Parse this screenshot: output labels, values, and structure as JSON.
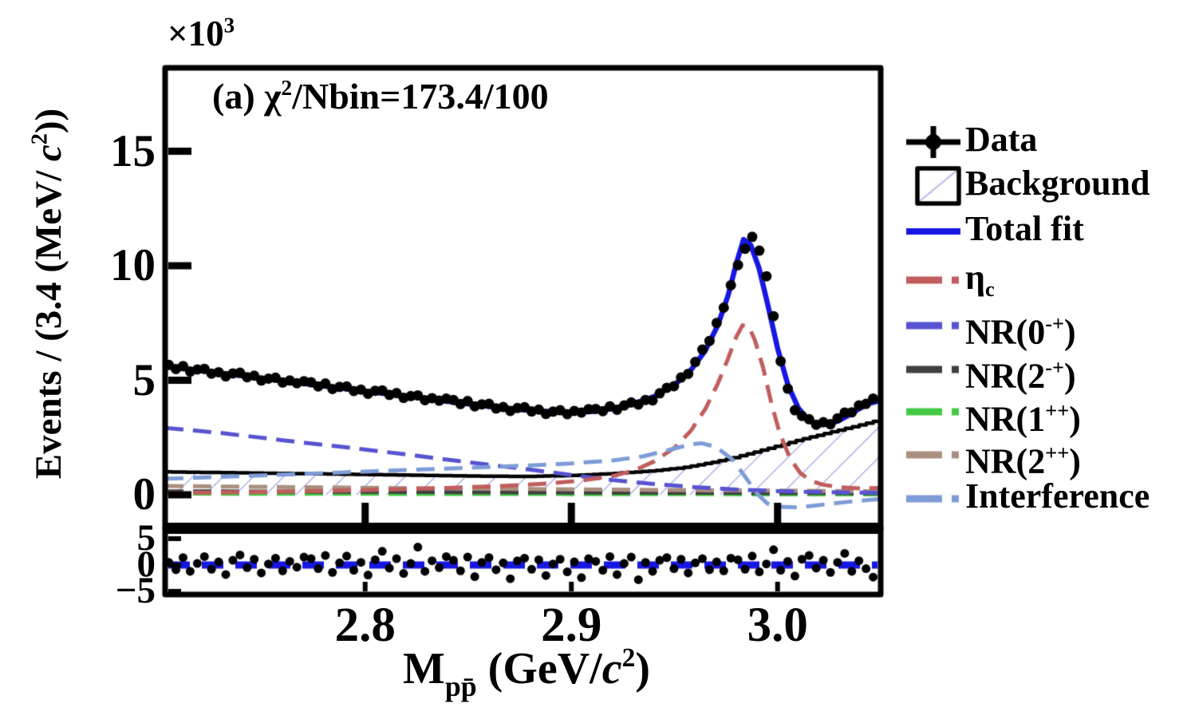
{
  "figure_title": "(a) χ2/Nbin=173.4/100",
  "texts": {
    "annotation_plain": "(a) χ2/Nbin=173.4/100",
    "annotation_rich": [
      {
        "t": "(a) χ"
      },
      {
        "t": "2",
        "sup": true
      },
      {
        "t": "/Nbin=173.4/100"
      }
    ],
    "multiplier_plain": "×103",
    "multiplier_rich": [
      {
        "t": "×10"
      },
      {
        "t": "3",
        "sup": true
      }
    ],
    "y_title_plain": "Events / (3.4 (MeV/ c2))",
    "y_title_rich": [
      {
        "t": "Events / (3.4 (MeV/ "
      },
      {
        "t": "c",
        "it": true
      },
      {
        "t": "2",
        "sup": true
      },
      {
        "t": "))"
      }
    ],
    "x_title_plain": "Mpp̄ (GeV/c2)",
    "x_title_rich": [
      {
        "t": "M"
      },
      {
        "t": "pp̄",
        "sub": true
      },
      {
        "t": " (GeV/"
      },
      {
        "t": "c",
        "it": true
      },
      {
        "t": "2",
        "sup": true
      },
      {
        "t": ")"
      }
    ]
  },
  "legend": {
    "items": [
      {
        "label": "Data",
        "label_rich": [
          {
            "t": "Data"
          }
        ],
        "marker": "cross-dot",
        "color": "#000000"
      },
      {
        "label": "Background",
        "label_rich": [
          {
            "t": "Background"
          }
        ],
        "marker": "hatched-box",
        "color": "#000000",
        "hatch_color": "#b8b8ec"
      },
      {
        "label": "Total fit",
        "label_rich": [
          {
            "t": "Total fit"
          }
        ],
        "marker": "solid-line",
        "color": "#1717e3"
      },
      {
        "label": "ηc",
        "label_rich": [
          {
            "t": "η"
          },
          {
            "t": "c",
            "sub": true
          }
        ],
        "marker": "dashed-line",
        "color": "#c15d5d"
      },
      {
        "label": "NR(0-+)",
        "label_rich": [
          {
            "t": "NR(0"
          },
          {
            "t": "-+",
            "sup": true
          },
          {
            "t": ")"
          }
        ],
        "marker": "dashed-line",
        "color": "#5753d0"
      },
      {
        "label": "NR(2-+)",
        "label_rich": [
          {
            "t": "NR(2"
          },
          {
            "t": "-+",
            "sup": true
          },
          {
            "t": ")"
          }
        ],
        "marker": "dashed-line",
        "color": "#404040"
      },
      {
        "label": "NR(1++)",
        "label_rich": [
          {
            "t": "NR(1"
          },
          {
            "t": "++",
            "sup": true
          },
          {
            "t": ")"
          }
        ],
        "marker": "dashed-line",
        "color": "#45c945"
      },
      {
        "label": "NR(2++)",
        "label_rich": [
          {
            "t": "NR(2"
          },
          {
            "t": "++",
            "sup": true
          },
          {
            "t": ")"
          }
        ],
        "marker": "dashed-line",
        "color": "#aa8f7f"
      },
      {
        "label": "Interference",
        "label_rich": [
          {
            "t": "Interference"
          }
        ],
        "marker": "dashed-line",
        "color": "#7d9cd7"
      }
    ]
  },
  "chart_data": {
    "type": "line",
    "title": "(a) χ2/Nbin=173.4/100",
    "xlabel": "Mpp̄ (GeV/c2)",
    "ylabel": "Events / (3.4 (MeV/ c2))",
    "y_unit_multiplier": "×103",
    "bin_width_label": "3.4 MeV/c2",
    "xlim": [
      2.703,
      3.05
    ],
    "ylim": [
      -1.45,
      18.6
    ],
    "x_ticks": [
      "2.8",
      "2.9",
      "3.0"
    ],
    "x_tick_values": [
      2.8,
      2.9,
      3.0
    ],
    "y_ticks": [
      "0",
      "5",
      "10",
      "15"
    ],
    "y_tick_values": [
      0,
      5,
      10,
      15
    ],
    "grid": false,
    "legend_position": "right-outside",
    "data_points": {
      "name": "Data",
      "x_start": 2.7048,
      "x_step": 0.00345,
      "values": [
        5.67,
        5.49,
        5.62,
        5.38,
        5.47,
        5.5,
        5.29,
        5.35,
        5.17,
        5.3,
        5.33,
        5.13,
        5.2,
        4.99,
        5.07,
        5.11,
        4.9,
        4.99,
        4.87,
        4.96,
        4.91,
        4.73,
        4.86,
        4.62,
        4.71,
        4.73,
        4.53,
        4.59,
        4.41,
        4.54,
        4.56,
        4.36,
        4.44,
        4.23,
        4.31,
        4.34,
        4.13,
        4.22,
        4.11,
        4.2,
        4.14,
        3.96,
        4.09,
        3.86,
        3.95,
        3.97,
        3.77,
        3.83,
        3.66,
        3.79,
        3.82,
        3.64,
        3.72,
        3.53,
        3.63,
        3.69,
        3.52,
        3.66,
        3.59,
        3.74,
        3.75,
        3.65,
        3.86,
        3.71,
        3.9,
        4.03,
        3.94,
        4.14,
        4.12,
        4.43,
        4.67,
        4.74,
        5.12,
        5.28,
        5.8,
        6.34,
        6.72,
        7.5,
        8.17,
        9.15,
        10.03,
        10.74,
        11.26,
        10.66,
        9.54,
        7.8,
        5.83,
        4.63,
        3.69,
        3.44,
        3.3,
        3.06,
        3.17,
        3.08,
        3.34,
        3.59,
        3.6,
        3.9,
        3.97,
        4.2
      ]
    },
    "series": [
      {
        "name": "Background",
        "style": "hatched-step-histogram",
        "color": "#000000",
        "hatch_color": "#b8b8ec",
        "points": [
          [
            2.703,
            1.0
          ],
          [
            2.74,
            0.96
          ],
          [
            2.78,
            0.91
          ],
          [
            2.82,
            0.86
          ],
          [
            2.86,
            0.81
          ],
          [
            2.88,
            0.8
          ],
          [
            2.9,
            0.84
          ],
          [
            2.92,
            0.92
          ],
          [
            2.94,
            1.04
          ],
          [
            2.955,
            1.18
          ],
          [
            2.97,
            1.42
          ],
          [
            2.98,
            1.62
          ],
          [
            2.99,
            1.86
          ],
          [
            3.0,
            2.1
          ],
          [
            3.01,
            2.35
          ],
          [
            3.02,
            2.58
          ],
          [
            3.03,
            2.8
          ],
          [
            3.04,
            3.02
          ],
          [
            3.05,
            3.25
          ]
        ]
      },
      {
        "name": "NR(1++)",
        "style": "dashed",
        "color": "#45c945",
        "points": [
          [
            2.703,
            0.05
          ],
          [
            2.8,
            0.04
          ],
          [
            2.9,
            0.03
          ],
          [
            3.0,
            0.02
          ],
          [
            3.05,
            0.02
          ]
        ]
      },
      {
        "name": "NR(2-+)",
        "style": "dashed",
        "color": "#404040",
        "points": [
          [
            2.703,
            0.15
          ],
          [
            2.8,
            0.13
          ],
          [
            2.9,
            0.1
          ],
          [
            3.0,
            0.08
          ],
          [
            3.05,
            0.07
          ]
        ]
      },
      {
        "name": "NR(2++)",
        "style": "dashed",
        "color": "#aa8f7f",
        "points": [
          [
            2.703,
            0.38
          ],
          [
            2.76,
            0.34
          ],
          [
            2.82,
            0.29
          ],
          [
            2.88,
            0.25
          ],
          [
            2.94,
            0.21
          ],
          [
            3.0,
            0.18
          ],
          [
            3.05,
            0.15
          ]
        ]
      },
      {
        "name": "NR(0-+)",
        "style": "dashed",
        "color": "#5753d0",
        "points": [
          [
            2.703,
            2.92
          ],
          [
            2.73,
            2.7
          ],
          [
            2.76,
            2.38
          ],
          [
            2.79,
            2.08
          ],
          [
            2.82,
            1.76
          ],
          [
            2.85,
            1.42
          ],
          [
            2.88,
            1.1
          ],
          [
            2.9,
            0.86
          ],
          [
            2.92,
            0.64
          ],
          [
            2.94,
            0.47
          ],
          [
            2.96,
            0.33
          ],
          [
            2.98,
            0.23
          ],
          [
            3.0,
            0.16
          ],
          [
            3.02,
            0.12
          ],
          [
            3.035,
            0.1
          ],
          [
            3.05,
            0.09
          ]
        ]
      },
      {
        "name": "ηc",
        "style": "dashed",
        "color": "#c15d5d",
        "points": [
          [
            2.703,
            0.08
          ],
          [
            2.75,
            0.12
          ],
          [
            2.8,
            0.2
          ],
          [
            2.84,
            0.3
          ],
          [
            2.87,
            0.4
          ],
          [
            2.89,
            0.5
          ],
          [
            2.905,
            0.62
          ],
          [
            2.92,
            0.82
          ],
          [
            2.93,
            1.05
          ],
          [
            2.94,
            1.45
          ],
          [
            2.95,
            2.05
          ],
          [
            2.958,
            2.8
          ],
          [
            2.965,
            3.75
          ],
          [
            2.971,
            4.85
          ],
          [
            2.976,
            5.95
          ],
          [
            2.98,
            6.9
          ],
          [
            2.983,
            7.4
          ],
          [
            2.986,
            7.35
          ],
          [
            2.989,
            6.75
          ],
          [
            2.993,
            5.55
          ],
          [
            2.997,
            4.0
          ],
          [
            3.001,
            2.7
          ],
          [
            3.006,
            1.6
          ],
          [
            3.011,
            0.95
          ],
          [
            3.016,
            0.62
          ],
          [
            3.022,
            0.44
          ],
          [
            3.03,
            0.33
          ],
          [
            3.04,
            0.28
          ],
          [
            3.05,
            0.3
          ]
        ]
      },
      {
        "name": "Interference",
        "style": "dashed",
        "color": "#7d9cd7",
        "points": [
          [
            2.703,
            0.7
          ],
          [
            2.73,
            0.78
          ],
          [
            2.76,
            0.88
          ],
          [
            2.79,
            0.98
          ],
          [
            2.82,
            1.08
          ],
          [
            2.85,
            1.18
          ],
          [
            2.88,
            1.28
          ],
          [
            2.9,
            1.37
          ],
          [
            2.92,
            1.5
          ],
          [
            2.935,
            1.68
          ],
          [
            2.95,
            2.02
          ],
          [
            2.958,
            2.2
          ],
          [
            2.963,
            2.25
          ],
          [
            2.97,
            2.1
          ],
          [
            2.978,
            1.55
          ],
          [
            2.985,
            0.7
          ],
          [
            2.99,
            0.05
          ],
          [
            2.995,
            -0.38
          ],
          [
            3.0,
            -0.52
          ],
          [
            3.01,
            -0.55
          ],
          [
            3.02,
            -0.45
          ],
          [
            3.035,
            -0.3
          ],
          [
            3.05,
            -0.18
          ]
        ]
      },
      {
        "name": "Total fit",
        "style": "solid",
        "color": "#1717e3",
        "points": [
          [
            2.703,
            5.6
          ],
          [
            2.72,
            5.42
          ],
          [
            2.74,
            5.2
          ],
          [
            2.76,
            4.97
          ],
          [
            2.78,
            4.75
          ],
          [
            2.8,
            4.52
          ],
          [
            2.82,
            4.3
          ],
          [
            2.84,
            4.08
          ],
          [
            2.86,
            3.86
          ],
          [
            2.875,
            3.72
          ],
          [
            2.89,
            3.62
          ],
          [
            2.9,
            3.6
          ],
          [
            2.91,
            3.63
          ],
          [
            2.92,
            3.76
          ],
          [
            2.93,
            3.97
          ],
          [
            2.94,
            4.28
          ],
          [
            2.95,
            4.8
          ],
          [
            2.958,
            5.45
          ],
          [
            2.965,
            6.3
          ],
          [
            2.971,
            7.4
          ],
          [
            2.976,
            8.7
          ],
          [
            2.98,
            10.1
          ],
          [
            2.9835,
            11.15
          ],
          [
            2.987,
            10.9
          ],
          [
            2.991,
            9.9
          ],
          [
            2.995,
            8.4
          ],
          [
            3.0,
            6.4
          ],
          [
            3.005,
            4.8
          ],
          [
            3.01,
            3.8
          ],
          [
            3.015,
            3.25
          ],
          [
            3.02,
            3.05
          ],
          [
            3.025,
            3.08
          ],
          [
            3.03,
            3.25
          ],
          [
            3.035,
            3.5
          ],
          [
            3.04,
            3.78
          ],
          [
            3.045,
            4.0
          ],
          [
            3.05,
            4.12
          ]
        ]
      }
    ],
    "pull_panel": {
      "y_ticks": [
        "5",
        "0",
        "−5"
      ],
      "y_tick_values": [
        5,
        0,
        -5
      ],
      "ylim": [
        -6.9,
        7.0
      ],
      "zero_line": 0,
      "zero_line_color": "#1717e3",
      "values": [
        0.5,
        -0.9,
        1.4,
        -1.2,
        0.3,
        1.6,
        -0.8,
        0.6,
        -1.8,
        0.9,
        1.9,
        -0.5,
        1.1,
        -1.5,
        0.2,
        1.3,
        -1.1,
        0.7,
        -0.4,
        1.5,
        1.2,
        -0.7,
        1.8,
        -1.4,
        0.4,
        1.7,
        -1.0,
        0.5,
        -1.9,
        1.0,
        2.6,
        -0.6,
        1.2,
        -1.6,
        0.3,
        3.4,
        -1.2,
        0.8,
        -0.5,
        1.6,
        0.9,
        -1.1,
        1.5,
        -2.2,
        0.5,
        1.4,
        -0.9,
        0.4,
        -2.6,
        0.8,
        1.3,
        -0.8,
        1.0,
        -2.0,
        0.2,
        1.1,
        -1.3,
        0.6,
        -2.4,
        1.2,
        0.7,
        -1.0,
        1.6,
        -1.8,
        0.3,
        1.5,
        -2.8,
        0.5,
        -1.2,
        0.9,
        1.4,
        -0.7,
        1.1,
        -1.5,
        0.4,
        1.2,
        -0.9,
        0.6,
        -1.1,
        1.3,
        1.0,
        -0.8,
        1.7,
        -1.3,
        0.2,
        2.9,
        -1.0,
        0.7,
        -2.1,
        1.1,
        1.8,
        -0.6,
        0.9,
        -1.4,
        0.5,
        2.2,
        -1.2,
        0.8,
        -0.7,
        -2.3
      ]
    }
  }
}
